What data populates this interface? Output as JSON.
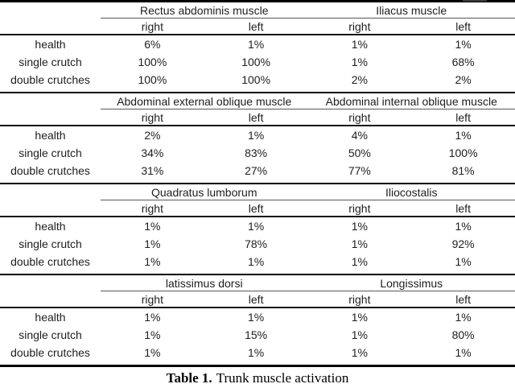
{
  "table": {
    "caption": {
      "label": "Table 1.",
      "text": "Trunk muscle activation"
    },
    "colors": {
      "text": "#1e1e1e",
      "rule_heavy": "#000000",
      "rule_light": "#575757"
    },
    "sections": [
      {
        "groups": [
          "Rectus abdominis muscle",
          "Iliacus muscle"
        ],
        "subheaders": [
          "right",
          "left",
          "right",
          "left"
        ],
        "rows": [
          {
            "label": "health",
            "values": [
              "6%",
              "1%",
              "1%",
              "1%"
            ]
          },
          {
            "label": "single crutch",
            "values": [
              "100%",
              "100%",
              "1%",
              "68%"
            ]
          },
          {
            "label": "double crutches",
            "values": [
              "100%",
              "100%",
              "2%",
              "2%"
            ]
          }
        ]
      },
      {
        "groups": [
          "Abdominal external oblique muscle",
          "Abdominal internal oblique muscle"
        ],
        "subheaders": [
          "right",
          "left",
          "right",
          "left"
        ],
        "rows": [
          {
            "label": "health",
            "values": [
              "2%",
              "1%",
              "4%",
              "1%"
            ]
          },
          {
            "label": "single crutch",
            "values": [
              "34%",
              "83%",
              "50%",
              "100%"
            ]
          },
          {
            "label": "double crutches",
            "values": [
              "31%",
              "27%",
              "77%",
              "81%"
            ]
          }
        ]
      },
      {
        "groups": [
          "Quadratus lumborum",
          "Iliocostalis"
        ],
        "subheaders": [
          "right",
          "left",
          "right",
          "left"
        ],
        "rows": [
          {
            "label": "health",
            "values": [
              "1%",
              "1%",
              "1%",
              "1%"
            ]
          },
          {
            "label": "single crutch",
            "values": [
              "1%",
              "78%",
              "1%",
              "92%"
            ]
          },
          {
            "label": "double crutches",
            "values": [
              "1%",
              "1%",
              "1%",
              "1%"
            ]
          }
        ]
      },
      {
        "groups": [
          "latissimus dorsi",
          "Longissimus"
        ],
        "subheaders": [
          "right",
          "left",
          "right",
          "left"
        ],
        "rows": [
          {
            "label": "health",
            "values": [
              "1%",
              "1%",
              "1%",
              "1%"
            ]
          },
          {
            "label": "single crutch",
            "values": [
              "1%",
              "15%",
              "1%",
              "80%"
            ]
          },
          {
            "label": "double crutches",
            "values": [
              "1%",
              "1%",
              "1%",
              "1%"
            ]
          }
        ]
      }
    ]
  }
}
